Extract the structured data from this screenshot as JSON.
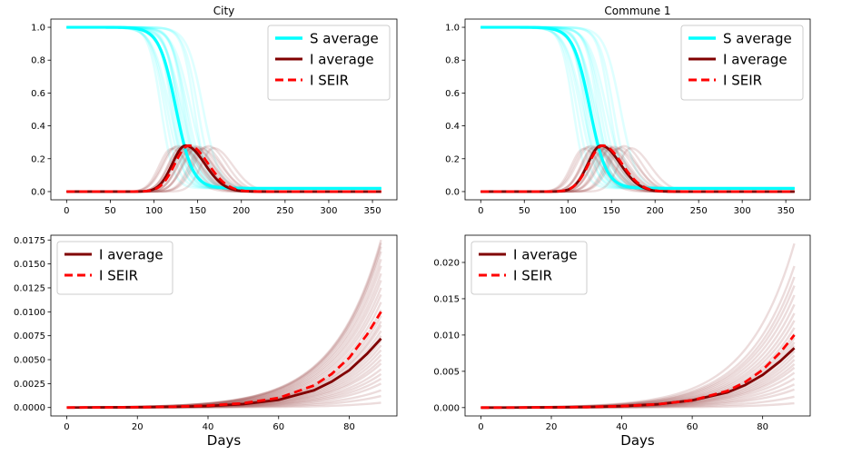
{
  "colors": {
    "s_average": "#00ffff",
    "s_runs": "#00ffff",
    "i_average": "#800000",
    "i_runs": "#a05050",
    "i_seir": "#ff0000"
  },
  "chart_data": [
    {
      "type": "line",
      "title": "City",
      "xlabel": "",
      "ylabel": "",
      "xlim": [
        -18,
        378
      ],
      "ylim": [
        -0.05,
        1.05
      ],
      "xticks": [
        0,
        50,
        100,
        150,
        200,
        250,
        300,
        350
      ],
      "xtick_labels": [
        "0",
        "50",
        "100",
        "150",
        "200",
        "250",
        "300",
        "350"
      ],
      "yticks": [
        0.0,
        0.2,
        0.4,
        0.6,
        0.8,
        1.0
      ],
      "ytick_labels": [
        "0.0",
        "0.2",
        "0.4",
        "0.6",
        "0.8",
        "1.0"
      ],
      "legend_position": "top-right",
      "legend": [
        "S  average",
        "I  average",
        "I  SEIR"
      ],
      "model": {
        "days": 360,
        "s_final": 0.02,
        "i_peak": 0.28,
        "s_average_midpoint_day": 125,
        "i_average_peak_day": 136,
        "i_seir_peak_day": 140,
        "run_midpoints": [
          108,
          112,
          115,
          118,
          120,
          122,
          124,
          125,
          127,
          128,
          130,
          132,
          134,
          136,
          138,
          142,
          146,
          150,
          156
        ]
      },
      "series": [
        {
          "name": "S  average",
          "x": [
            0,
            50,
            80,
            100,
            110,
            120,
            125,
            130,
            140,
            150,
            160,
            180,
            200,
            250,
            360
          ],
          "values": [
            1.0,
            1.0,
            0.985,
            0.93,
            0.84,
            0.65,
            0.51,
            0.38,
            0.18,
            0.08,
            0.045,
            0.025,
            0.021,
            0.02,
            0.02
          ]
        },
        {
          "name": "I  average",
          "x": [
            0,
            50,
            80,
            100,
            110,
            120,
            130,
            136,
            145,
            160,
            180,
            200,
            250,
            300,
            360
          ],
          "values": [
            0.0,
            0.0,
            0.003,
            0.02,
            0.06,
            0.15,
            0.25,
            0.28,
            0.245,
            0.14,
            0.05,
            0.015,
            0.002,
            0.0,
            0.0
          ]
        },
        {
          "name": "I  SEIR",
          "x": [
            0,
            50,
            80,
            100,
            110,
            120,
            130,
            140,
            150,
            165,
            185,
            205,
            250,
            300,
            360
          ],
          "values": [
            0.0,
            0.0,
            0.002,
            0.015,
            0.045,
            0.12,
            0.22,
            0.28,
            0.255,
            0.15,
            0.055,
            0.016,
            0.002,
            0.0,
            0.0
          ]
        }
      ]
    },
    {
      "type": "line",
      "title": "Commune 1",
      "xlabel": "",
      "ylabel": "",
      "xlim": [
        -18,
        378
      ],
      "ylim": [
        -0.05,
        1.05
      ],
      "xticks": [
        0,
        50,
        100,
        150,
        200,
        250,
        300,
        350
      ],
      "xtick_labels": [
        "0",
        "50",
        "100",
        "150",
        "200",
        "250",
        "300",
        "350"
      ],
      "yticks": [
        0.0,
        0.2,
        0.4,
        0.6,
        0.8,
        1.0
      ],
      "ytick_labels": [
        "0.0",
        "0.2",
        "0.4",
        "0.6",
        "0.8",
        "1.0"
      ],
      "legend_position": "top-right",
      "legend": [
        "S  average",
        "I  average",
        "I  SEIR"
      ],
      "model": {
        "days": 360,
        "s_final": 0.02,
        "i_peak": 0.28,
        "s_average_midpoint_day": 125,
        "i_average_peak_day": 138,
        "i_seir_peak_day": 140,
        "run_midpoints": [
          106,
          110,
          114,
          117,
          119,
          121,
          123,
          125,
          126,
          128,
          130,
          132,
          134,
          137,
          140,
          144,
          148,
          152,
          160
        ]
      },
      "series": [
        {
          "name": "S  average",
          "x": [
            0,
            50,
            80,
            100,
            110,
            120,
            125,
            130,
            140,
            150,
            160,
            180,
            200,
            250,
            360
          ],
          "values": [
            1.0,
            1.0,
            0.985,
            0.93,
            0.84,
            0.65,
            0.51,
            0.38,
            0.18,
            0.08,
            0.045,
            0.025,
            0.021,
            0.02,
            0.02
          ]
        },
        {
          "name": "I  average",
          "x": [
            0,
            50,
            80,
            100,
            110,
            120,
            130,
            138,
            148,
            160,
            180,
            200,
            250,
            300,
            360
          ],
          "values": [
            0.0,
            0.0,
            0.003,
            0.018,
            0.055,
            0.14,
            0.24,
            0.28,
            0.25,
            0.16,
            0.055,
            0.016,
            0.002,
            0.0,
            0.0
          ]
        },
        {
          "name": "I  SEIR",
          "x": [
            0,
            50,
            80,
            100,
            110,
            120,
            130,
            140,
            150,
            165,
            185,
            205,
            250,
            300,
            360
          ],
          "values": [
            0.0,
            0.0,
            0.002,
            0.015,
            0.045,
            0.12,
            0.22,
            0.28,
            0.255,
            0.15,
            0.055,
            0.016,
            0.002,
            0.0,
            0.0
          ]
        }
      ]
    },
    {
      "type": "line",
      "title": "",
      "xlabel": "Days",
      "ylabel": "",
      "xlim": [
        -4.5,
        93.5
      ],
      "ylim": [
        -0.00088,
        0.018
      ],
      "xticks": [
        0,
        20,
        40,
        60,
        80
      ],
      "xtick_labels": [
        "0",
        "20",
        "40",
        "60",
        "80"
      ],
      "yticks": [
        0.0,
        0.0025,
        0.005,
        0.0075,
        0.01,
        0.0125,
        0.015,
        0.0175
      ],
      "ytick_labels": [
        "0.0000",
        "0.0025",
        "0.0050",
        "0.0075",
        "0.0100",
        "0.0125",
        "0.0150",
        "0.0175"
      ],
      "legend_position": "top-left",
      "legend": [
        "I  average",
        "I  SEIR"
      ],
      "model": {
        "days": 89,
        "run_finals": [
          0.0005,
          0.0012,
          0.0018,
          0.0025,
          0.003,
          0.0035,
          0.004,
          0.0046,
          0.005,
          0.0055,
          0.006,
          0.0065,
          0.007,
          0.0075,
          0.008,
          0.0086,
          0.009,
          0.0096,
          0.0102,
          0.011,
          0.0118,
          0.0125,
          0.0133,
          0.014,
          0.0148,
          0.0155,
          0.0163,
          0.0168,
          0.0172,
          0.0175
        ]
      },
      "series": [
        {
          "name": "I  average",
          "x": [
            0,
            10,
            20,
            30,
            40,
            50,
            60,
            70,
            75,
            80,
            85,
            89
          ],
          "values": [
            0.0,
            1e-05,
            3e-05,
            7e-05,
            0.00016,
            0.00036,
            0.0008,
            0.0018,
            0.0027,
            0.0039,
            0.0056,
            0.0072
          ]
        },
        {
          "name": "I  SEIR",
          "x": [
            0,
            10,
            20,
            30,
            40,
            50,
            60,
            70,
            75,
            80,
            85,
            89
          ],
          "values": [
            0.0,
            1e-05,
            3e-05,
            8e-05,
            0.0002,
            0.00045,
            0.001,
            0.0023,
            0.0035,
            0.0052,
            0.0076,
            0.01
          ]
        }
      ]
    },
    {
      "type": "line",
      "title": "",
      "xlabel": "Days",
      "ylabel": "",
      "xlim": [
        -4.5,
        93.5
      ],
      "ylim": [
        -0.00115,
        0.02375
      ],
      "xticks": [
        0,
        20,
        40,
        60,
        80
      ],
      "xtick_labels": [
        "0",
        "20",
        "40",
        "60",
        "80"
      ],
      "yticks": [
        0.0,
        0.005,
        0.01,
        0.015,
        0.02
      ],
      "ytick_labels": [
        "0.000",
        "0.005",
        "0.010",
        "0.015",
        "0.020"
      ],
      "legend_position": "top-left",
      "legend": [
        "I  average",
        "I  SEIR"
      ],
      "model": {
        "days": 89,
        "run_finals": [
          0.0006,
          0.0015,
          0.0025,
          0.0032,
          0.004,
          0.0048,
          0.0055,
          0.006,
          0.0066,
          0.0072,
          0.0078,
          0.0085,
          0.009,
          0.0096,
          0.0102,
          0.011,
          0.012,
          0.013,
          0.0142,
          0.0155,
          0.0168,
          0.018,
          0.0195,
          0.0226
        ]
      },
      "series": [
        {
          "name": "I  average",
          "x": [
            0,
            10,
            20,
            30,
            40,
            50,
            60,
            70,
            75,
            80,
            85,
            89
          ],
          "values": [
            0.0,
            1e-05,
            3e-05,
            8e-05,
            0.0002,
            0.00045,
            0.001,
            0.0021,
            0.0031,
            0.0045,
            0.0064,
            0.0082
          ]
        },
        {
          "name": "I  SEIR",
          "x": [
            0,
            10,
            20,
            30,
            40,
            50,
            60,
            70,
            75,
            80,
            85,
            89
          ],
          "values": [
            0.0,
            1e-05,
            3e-05,
            8e-05,
            0.0002,
            0.00045,
            0.001,
            0.0023,
            0.0035,
            0.0052,
            0.0076,
            0.01
          ]
        }
      ]
    }
  ]
}
